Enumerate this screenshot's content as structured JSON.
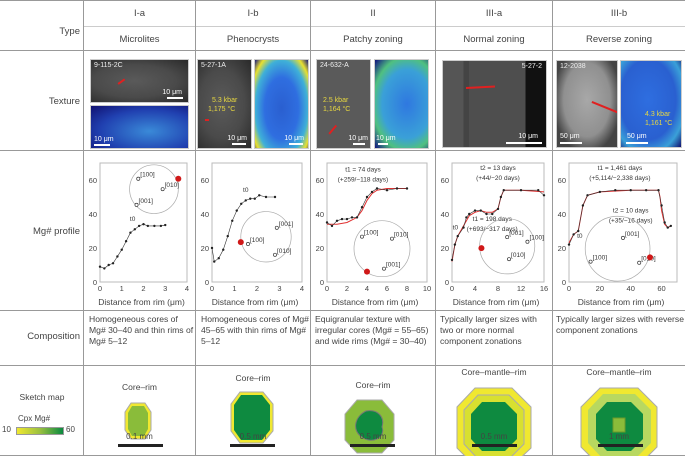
{
  "row_labels": {
    "type": "Type",
    "texture": "Texture",
    "profile": "Mg# profile",
    "composition": "Composition",
    "sketch": "Sketch map"
  },
  "columns": [
    {
      "type": "I-a",
      "name": "Microlites",
      "sample": "9-115-2C",
      "scale_bse": "10 μm",
      "scale_map": "10 μm",
      "composition": "Homogeneous cores of Mg# 30–40 and thin rims of Mg# 5–12",
      "sketch_label": "Core–rim",
      "sketch_scale": "0.1 mm"
    },
    {
      "type": "I-b",
      "name": "Phenocrysts",
      "sample": "5-27-1A",
      "pt": "5.3 kbar",
      "temp": "1,175 °C",
      "scale_bse": "10 μm",
      "scale_map": "10 μm",
      "composition": "Homogeneous cores of Mg# 45–65 with thin rims of Mg# 5–12",
      "sketch_label": "Core–rim",
      "sketch_scale": "0.5 mm"
    },
    {
      "type": "II",
      "name": "Patchy zoning",
      "sample": "24-632-A",
      "pt": "2.5 kbar",
      "temp": "1,164 °C",
      "scale_bse": "10 μm",
      "scale_map": "10 μm",
      "composition": "Equigranular texture with irregular cores (Mg# = 55–65) and wide rims (Mg# = 30–40)",
      "sketch_label": "Core–rim",
      "sketch_scale": "0.5 mm"
    },
    {
      "type": "III-a",
      "name": "Normal zoning",
      "sample": "5-27-2",
      "scale_bse": "10 μm",
      "composition": "Typically larger sizes with two or more normal component zonations",
      "sketch_label": "Core–mantle–rim",
      "sketch_scale": "0.5 mm"
    },
    {
      "type": "III-b",
      "name": "Reverse zoning",
      "sample": "12-2038",
      "pt": "4.3 kbar",
      "temp": "1,161 °C",
      "scale_bse": "50 μm",
      "scale_map": "50 μm",
      "composition": "Typically larger sizes with reverse component zonations",
      "sketch_label": "Core–mantle–rim",
      "sketch_scale": "1 mm"
    }
  ],
  "legend": {
    "title": "Cpx Mg#",
    "min": "10",
    "max": "60",
    "color_low": "#f0e830",
    "color_high": "#0a8a40"
  },
  "colors": {
    "fit": "#e03030",
    "point": "#222",
    "red_dot": "#d01818"
  },
  "chart_data": [
    {
      "type": "scatter",
      "xlabel": "Distance from rim (μm)",
      "xlim": [
        0,
        4
      ],
      "xticks": [
        "0",
        "1",
        "2",
        "3",
        "4"
      ],
      "ylim": [
        0,
        70
      ],
      "yticks": [
        "0",
        "20",
        "40",
        "60"
      ],
      "x": [
        0,
        0.2,
        0.4,
        0.6,
        0.8,
        1,
        1.2,
        1.4,
        1.6,
        1.8,
        2,
        2.2,
        2.5,
        2.8,
        3
      ],
      "y": [
        9,
        8,
        10,
        11,
        15,
        19,
        24,
        29,
        31,
        33,
        34,
        33,
        33,
        33,
        33.5
      ],
      "annotations": [
        {
          "text": "t0",
          "x": 1.5,
          "y": 36
        }
      ],
      "poles": [
        "[100]",
        "[010]",
        "[001]"
      ]
    },
    {
      "type": "scatter",
      "xlabel": "Distance from rim (μm)",
      "xlim": [
        0,
        4
      ],
      "xticks": [
        "0",
        "1",
        "2",
        "3",
        "4"
      ],
      "ylim": [
        0,
        70
      ],
      "yticks": [
        "0",
        "20",
        "40",
        "60"
      ],
      "x": [
        0,
        0.1,
        0.3,
        0.5,
        0.7,
        0.9,
        1.1,
        1.3,
        1.5,
        1.7,
        1.9,
        2.1,
        2.4,
        2.8
      ],
      "y": [
        20,
        12,
        14,
        19,
        27,
        36,
        42,
        46,
        48,
        49,
        49,
        51,
        50,
        50
      ],
      "annotations": [
        {
          "text": "t0",
          "x": 1.5,
          "y": 53
        }
      ],
      "poles": [
        "[001]",
        "[100]",
        "[010]"
      ]
    },
    {
      "type": "scatter",
      "xlabel": "Distance from rim (μm)",
      "xlim": [
        0,
        10
      ],
      "xticks": [
        "0",
        "2",
        "4",
        "6",
        "8",
        "10"
      ],
      "ylim": [
        0,
        70
      ],
      "yticks": [
        "0",
        "20",
        "40",
        "60"
      ],
      "x": [
        0,
        0.5,
        1,
        1.5,
        2,
        2.5,
        3,
        3.5,
        4,
        4.5,
        5,
        6,
        7,
        8
      ],
      "y": [
        35,
        33,
        36,
        37,
        37,
        38,
        38,
        44,
        50,
        53,
        55,
        54,
        55,
        55
      ],
      "fit": {
        "x": [
          0,
          1,
          2,
          3,
          3.5,
          4,
          4.5,
          5,
          6,
          8
        ],
        "y": [
          34,
          34,
          35,
          38,
          42,
          48,
          52,
          54,
          55,
          55
        ]
      },
      "annotations": [
        {
          "text": "t1 = 74 days",
          "x": 3.6,
          "y": 65
        },
        {
          "text": "(+259/−118 days)",
          "x": 3.6,
          "y": 59
        }
      ],
      "poles": [
        "[100]",
        "[010]",
        "[001]"
      ]
    },
    {
      "type": "scatter",
      "xlabel": "Distance from rim (μm)",
      "xlim": [
        0,
        16
      ],
      "xticks": [
        "0",
        "4",
        "8",
        "12",
        "16"
      ],
      "ylim": [
        0,
        70
      ],
      "yticks": [
        "0",
        "20",
        "40",
        "60"
      ],
      "x": [
        0,
        0.5,
        1,
        2,
        2.5,
        3,
        4,
        5,
        6,
        7,
        8,
        8.5,
        9,
        12,
        15,
        16
      ],
      "y": [
        13,
        22,
        27,
        32,
        38,
        40,
        42,
        42,
        40,
        40,
        43,
        50,
        54,
        54,
        54,
        51
      ],
      "fit": {
        "x": [
          0,
          0.5,
          1,
          2,
          3,
          4,
          5,
          6,
          7,
          8,
          8.5,
          9,
          12,
          16
        ],
        "y": [
          12,
          22,
          27,
          33,
          39,
          41,
          42,
          41,
          41,
          43,
          50,
          54,
          54,
          53
        ]
      },
      "annotations": [
        {
          "text": "t2 = 13 days",
          "x": 8,
          "y": 66
        },
        {
          "text": "(+44/−20 days)",
          "x": 8,
          "y": 60
        },
        {
          "text": "t1 = 198 days",
          "x": 7,
          "y": 36
        },
        {
          "text": "(+693/−317 days)",
          "x": 7,
          "y": 30
        },
        {
          "text": "t0",
          "x": 0.6,
          "y": 31
        }
      ],
      "poles": [
        "[001]",
        "[100]",
        "[010]"
      ]
    },
    {
      "type": "scatter",
      "xlabel": "Distance from rim (μm)",
      "xlim": [
        0,
        70
      ],
      "xticks": [
        "0",
        "20",
        "40",
        "60"
      ],
      "ylim": [
        0,
        70
      ],
      "yticks": [
        "0",
        "20",
        "40",
        "60"
      ],
      "x": [
        0,
        3,
        6,
        9,
        12,
        20,
        30,
        40,
        50,
        58,
        60,
        62,
        64,
        66
      ],
      "y": [
        22,
        28,
        30,
        45,
        51,
        53,
        54,
        54,
        54,
        54,
        45,
        35,
        32,
        33
      ],
      "fit": {
        "x": [
          0,
          3,
          6,
          9,
          12,
          20,
          40,
          58,
          59,
          60,
          62,
          64,
          66
        ],
        "y": [
          23,
          28,
          30,
          45,
          51,
          53,
          54,
          54,
          50,
          42,
          34,
          32,
          33
        ]
      },
      "annotations": [
        {
          "text": "t1 = 1,461 days",
          "x": 33,
          "y": 66
        },
        {
          "text": "(+5,114/−2,338 days)",
          "x": 33,
          "y": 60
        },
        {
          "text": "t2 = 10 days",
          "x": 40,
          "y": 41
        },
        {
          "text": "(+35/−16 days)",
          "x": 40,
          "y": 35
        },
        {
          "text": "t0",
          "x": 7,
          "y": 26
        }
      ],
      "poles": [
        "[001]",
        "[100]",
        "[010]"
      ]
    }
  ]
}
